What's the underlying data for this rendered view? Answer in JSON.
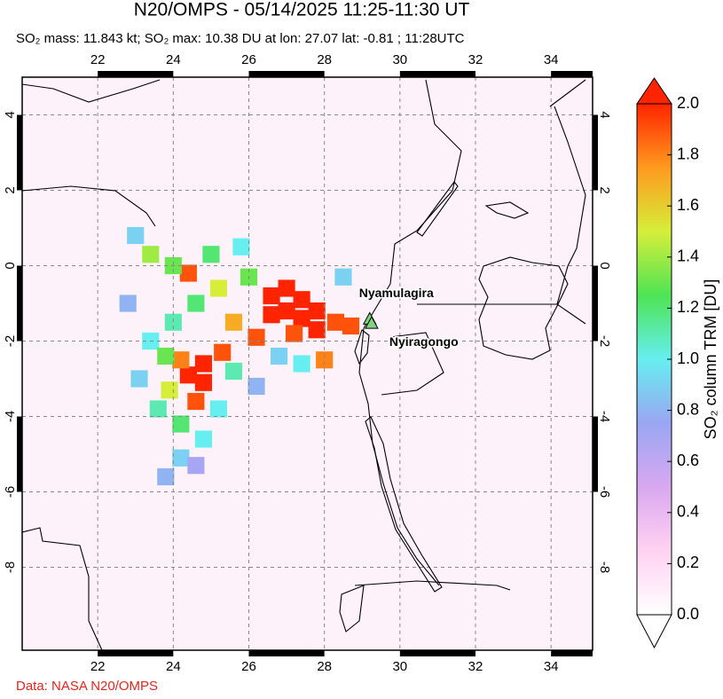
{
  "chart_data": {
    "type": "map",
    "title": "N20/OMPS - 05/14/2025 11:25-11:30 UT",
    "subtitle": "SO₂ mass: 11.843 kt; SO₂ max: 10.38 DU at lon: 27.07 lat: -0.81 ; 11:28UTC",
    "footer": "Data: NASA N20/OMPS",
    "xlim": [
      20,
      35.1
    ],
    "ylim": [
      -10.2,
      5.0
    ],
    "xticks": [
      22,
      24,
      26,
      28,
      30,
      32,
      34
    ],
    "yticks": [
      4,
      2,
      0,
      -2,
      -4,
      -6,
      -8
    ],
    "grid": true,
    "volcanoes": [
      {
        "name": "Nyamulagira",
        "lon": 29.2,
        "lat": -1.41
      },
      {
        "name": "Nyiragongo",
        "lon": 29.25,
        "lat": -1.52
      }
    ],
    "cells": [
      {
        "lon": 26.6,
        "lat": -0.8,
        "value": 2.0
      },
      {
        "lon": 27.0,
        "lat": -0.6,
        "value": 2.0
      },
      {
        "lon": 27.4,
        "lat": -0.9,
        "value": 2.0
      },
      {
        "lon": 27.0,
        "lat": -1.2,
        "value": 2.0
      },
      {
        "lon": 27.4,
        "lat": -1.4,
        "value": 2.0
      },
      {
        "lon": 27.8,
        "lat": -1.2,
        "value": 2.0
      },
      {
        "lon": 26.6,
        "lat": -1.3,
        "value": 2.0
      },
      {
        "lon": 27.8,
        "lat": -1.7,
        "value": 2.0
      },
      {
        "lon": 28.3,
        "lat": -1.5,
        "value": 1.9
      },
      {
        "lon": 28.7,
        "lat": -1.6,
        "value": 1.9
      },
      {
        "lon": 27.2,
        "lat": -1.8,
        "value": 1.9
      },
      {
        "lon": 26.2,
        "lat": -1.9,
        "value": 1.9
      },
      {
        "lon": 25.6,
        "lat": -1.5,
        "value": 1.7
      },
      {
        "lon": 25.3,
        "lat": -2.3,
        "value": 1.9
      },
      {
        "lon": 24.8,
        "lat": -2.6,
        "value": 2.0
      },
      {
        "lon": 24.4,
        "lat": -2.9,
        "value": 2.0
      },
      {
        "lon": 24.8,
        "lat": -3.1,
        "value": 2.0
      },
      {
        "lon": 24.2,
        "lat": -2.5,
        "value": 1.8
      },
      {
        "lon": 24.6,
        "lat": -3.6,
        "value": 1.9
      },
      {
        "lon": 28.0,
        "lat": -2.5,
        "value": 1.8
      },
      {
        "lon": 24.4,
        "lat": -0.2,
        "value": 1.9
      },
      {
        "lon": 23.9,
        "lat": -3.3,
        "value": 1.5
      },
      {
        "lon": 23.4,
        "lat": 0.3,
        "value": 1.4
      },
      {
        "lon": 24.0,
        "lat": 0.0,
        "value": 1.3
      },
      {
        "lon": 25.0,
        "lat": 0.3,
        "value": 1.2
      },
      {
        "lon": 25.8,
        "lat": 0.5,
        "value": 1.0
      },
      {
        "lon": 26.0,
        "lat": -0.3,
        "value": 1.3
      },
      {
        "lon": 25.2,
        "lat": -0.6,
        "value": 1.5
      },
      {
        "lon": 24.6,
        "lat": -1.0,
        "value": 1.2
      },
      {
        "lon": 24.0,
        "lat": -1.5,
        "value": 1.1
      },
      {
        "lon": 23.4,
        "lat": -2.0,
        "value": 1.0
      },
      {
        "lon": 23.8,
        "lat": -2.4,
        "value": 1.3
      },
      {
        "lon": 25.6,
        "lat": -2.8,
        "value": 1.1
      },
      {
        "lon": 26.8,
        "lat": -2.4,
        "value": 0.9
      },
      {
        "lon": 27.4,
        "lat": -2.6,
        "value": 1.0
      },
      {
        "lon": 23.6,
        "lat": -3.8,
        "value": 1.1
      },
      {
        "lon": 24.2,
        "lat": -4.2,
        "value": 1.2
      },
      {
        "lon": 24.8,
        "lat": -4.6,
        "value": 1.0
      },
      {
        "lon": 24.2,
        "lat": -5.1,
        "value": 0.9
      },
      {
        "lon": 23.8,
        "lat": -5.6,
        "value": 0.8
      },
      {
        "lon": 24.6,
        "lat": -5.3,
        "value": 0.7
      },
      {
        "lon": 25.2,
        "lat": -3.8,
        "value": 1.0
      },
      {
        "lon": 26.2,
        "lat": -3.2,
        "value": 0.8
      },
      {
        "lon": 23.1,
        "lat": -3.0,
        "value": 0.9
      },
      {
        "lon": 22.8,
        "lat": -1.0,
        "value": 0.8
      },
      {
        "lon": 23.0,
        "lat": 0.8,
        "value": 0.9
      },
      {
        "lon": 28.5,
        "lat": -0.3,
        "value": 0.9
      }
    ],
    "colorbar": {
      "label": "SO₂ column TRM [DU]",
      "lim": [
        0,
        2
      ],
      "ticks": [
        {
          "value": 0,
          "label": "0.0"
        },
        {
          "value": 0.2,
          "label": "0.2"
        },
        {
          "value": 0.4,
          "label": "0.4"
        },
        {
          "value": 0.6,
          "label": "0.6"
        },
        {
          "value": 0.8,
          "label": "0.8"
        },
        {
          "value": 1.0,
          "label": "1.0"
        },
        {
          "value": 1.2,
          "label": "1.2"
        },
        {
          "value": 1.4,
          "label": "1.4"
        },
        {
          "value": 1.6,
          "label": "1.6"
        },
        {
          "value": 1.8,
          "label": "1.8"
        },
        {
          "value": 2.0,
          "label": "2.0"
        }
      ],
      "colors": [
        "#ffffff",
        "#ffd2f2",
        "#d8a8f0",
        "#9aa6f2",
        "#66eef0",
        "#4ee454",
        "#d6ee3a",
        "#ff9a1e",
        "#ff2400"
      ]
    }
  }
}
